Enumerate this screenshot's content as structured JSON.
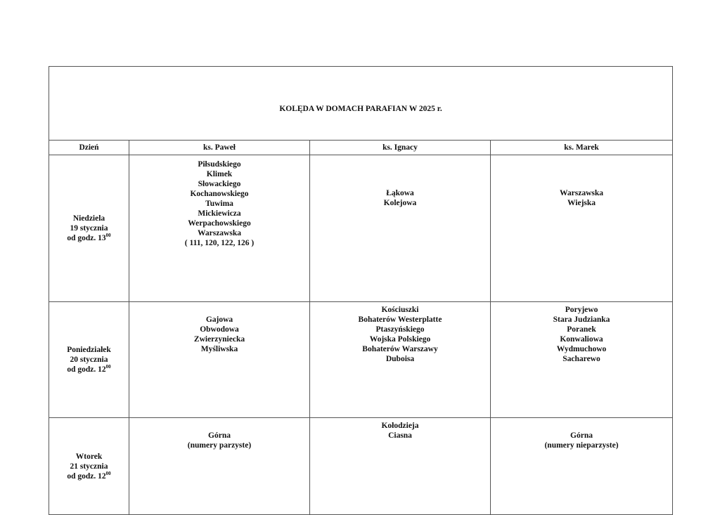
{
  "title": "KOLĘDA W DOMACH PARAFIAN W 2025 r.",
  "headers": [
    "Dzień",
    "ks.  Paweł",
    "ks. Ignacy",
    "ks. Marek"
  ],
  "rows": [
    {
      "day": {
        "name": "Niedziela",
        "date": "19 stycznia",
        "time_prefix": "od godz. 13",
        "time_sup": "00"
      },
      "pawel": [
        "Piłsudskiego",
        "Klimek",
        "Słowackiego",
        "Kochanowskiego",
        "Tuwima",
        "Mickiewicza",
        "Werpachowskiego",
        "Warszawska",
        "( 111, 120, 122, 126 )"
      ],
      "ignacy": [
        "Łąkowa",
        "Kolejowa"
      ],
      "marek": [
        "Warszawska",
        "Wiejska"
      ]
    },
    {
      "day": {
        "name": "Poniedziałek",
        "date": "20 stycznia",
        "time_prefix": "od godz. 12",
        "time_sup": "00"
      },
      "pawel": [
        "Gajowa",
        "Obwodowa",
        "Zwierzyniecka",
        "Myśliwska"
      ],
      "ignacy": [
        "Kościuszki",
        "Bohaterów Westerplatte",
        "Ptaszyńskiego",
        "Wojska Polskiego",
        "Bohaterów Warszawy",
        "Duboisa"
      ],
      "marek": [
        "Poryjewo",
        "Stara Judzianka",
        "Poranek",
        "Konwaliowa",
        "Wydmuchowo",
        "Sacharewo"
      ]
    },
    {
      "day": {
        "name": "Wtorek",
        "date": "21 stycznia",
        "time_prefix": "od godz. 12",
        "time_sup": "00"
      },
      "pawel": [
        "Górna",
        "(numery parzyste)"
      ],
      "ignacy": [
        "Kołodzieja",
        "Ciasna"
      ],
      "marek": [
        "Górna",
        "(numery nieparzyste)"
      ]
    }
  ]
}
